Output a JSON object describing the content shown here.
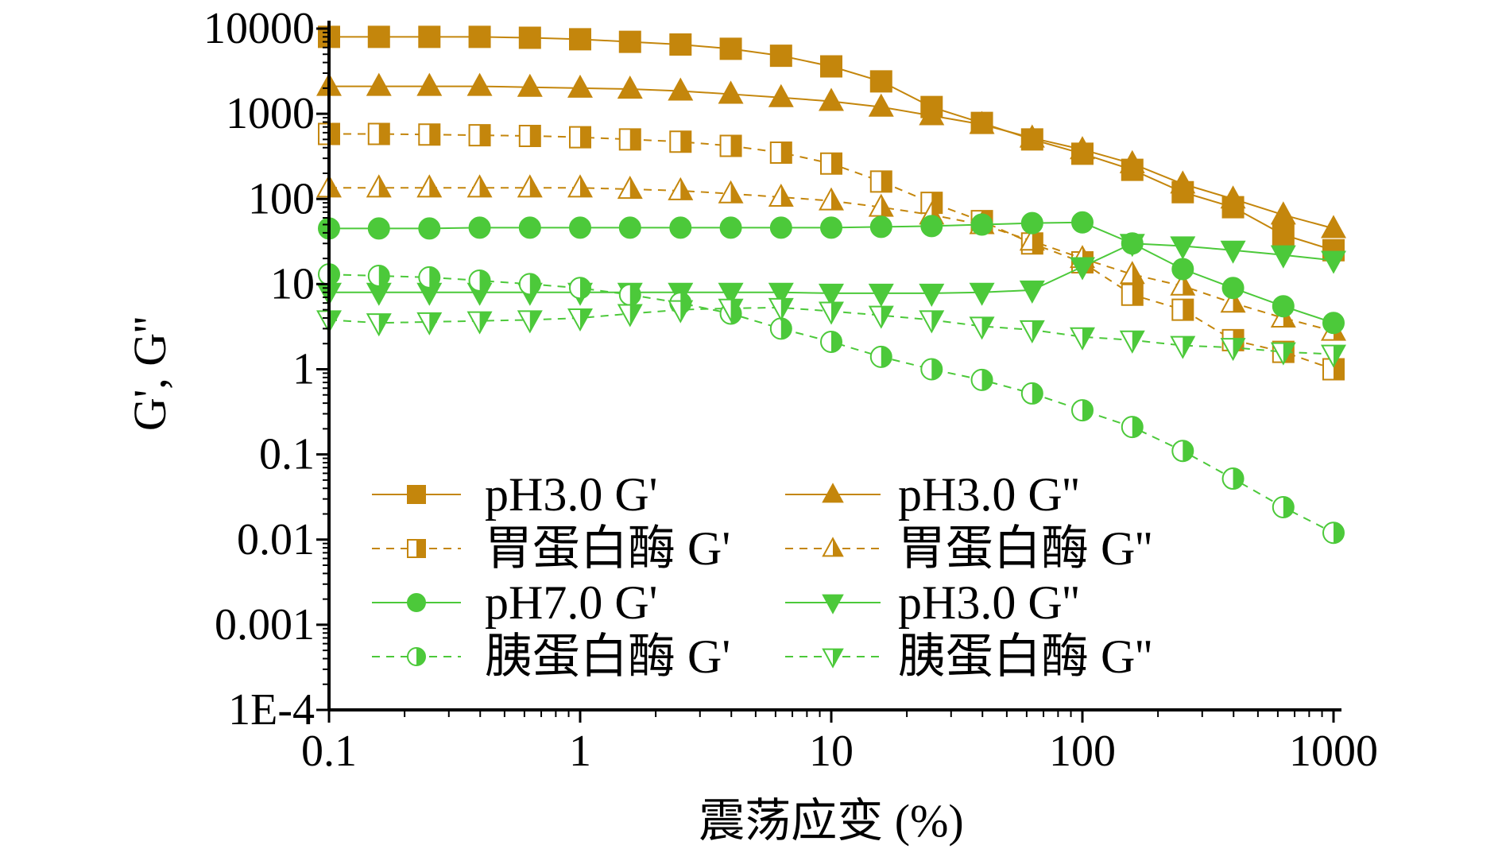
{
  "chart_data": {
    "type": "line",
    "title": "",
    "xlabel": "震荡应变 (%)",
    "ylabel": "G', G''",
    "xscale": "log",
    "yscale": "log",
    "xlim": [
      0.1,
      1000
    ],
    "ylim": [
      0.0001,
      10000
    ],
    "xticks": [
      "0.1",
      "1",
      "10",
      "100",
      "1000"
    ],
    "yticks": [
      "10000",
      "1000",
      "100",
      "10",
      "1",
      "0.1",
      "0.01",
      "0.001",
      "1E-4"
    ],
    "grid": false,
    "legend_position": "bottom-left, two columns",
    "x": [
      0.1,
      0.158,
      0.251,
      0.398,
      0.631,
      1,
      1.58,
      2.51,
      3.98,
      6.31,
      10,
      15.8,
      25.1,
      39.8,
      63.1,
      100,
      158,
      251,
      398,
      631,
      1000
    ],
    "colors": {
      "orange": "#c4860c",
      "green": "#4cc93a"
    },
    "series": [
      {
        "name": "pH3.0 G'",
        "color": "orange",
        "dash": false,
        "marker": "square",
        "fill": "full",
        "values": [
          8000,
          8000,
          8000,
          8000,
          7800,
          7500,
          7000,
          6500,
          5800,
          4800,
          3600,
          2400,
          1200,
          780,
          500,
          340,
          220,
          120,
          80,
          38,
          25
        ]
      },
      {
        "name": "pH3.0 G''",
        "color": "orange",
        "dash": false,
        "marker": "triangle-up",
        "fill": "full",
        "values": [
          2100,
          2100,
          2100,
          2100,
          2050,
          2000,
          1950,
          1850,
          1700,
          1550,
          1400,
          1200,
          950,
          750,
          520,
          380,
          260,
          150,
          100,
          65,
          45
        ]
      },
      {
        "name": "胃蛋白酶 G'",
        "color": "orange",
        "dash": true,
        "marker": "square",
        "fill": "half",
        "values": [
          580,
          580,
          570,
          560,
          550,
          530,
          500,
          470,
          420,
          350,
          260,
          160,
          90,
          55,
          30,
          18,
          7.5,
          5,
          2.2,
          1.6,
          1.0
        ]
      },
      {
        "name": "胃蛋白酶 G''",
        "color": "orange",
        "dash": true,
        "marker": "triangle-up",
        "fill": "half",
        "values": [
          135,
          135,
          135,
          135,
          135,
          135,
          130,
          125,
          115,
          105,
          95,
          80,
          65,
          50,
          32,
          20,
          13,
          9.5,
          6,
          4,
          2.8
        ]
      },
      {
        "name": "pH7.0 G'",
        "color": "green",
        "dash": false,
        "marker": "circle",
        "fill": "full",
        "values": [
          45,
          45,
          45,
          46,
          46,
          46,
          46,
          46,
          46,
          46,
          46,
          47,
          48,
          50,
          52,
          53,
          30,
          15,
          9,
          5.5,
          3.5
        ]
      },
      {
        "name": "pH3.0 G''",
        "color": "green",
        "dash": false,
        "marker": "triangle-down",
        "fill": "full",
        "values": [
          8,
          8,
          8,
          8,
          8,
          8,
          8,
          8,
          8,
          8,
          7.8,
          7.8,
          7.8,
          8,
          8.5,
          16,
          30,
          28,
          25,
          22,
          19
        ]
      },
      {
        "name": "胰蛋白酶 G'",
        "color": "green",
        "dash": true,
        "marker": "circle",
        "fill": "half",
        "values": [
          13,
          12.5,
          12,
          11,
          10,
          9,
          7.5,
          6,
          4.5,
          3,
          2.1,
          1.4,
          1.0,
          0.75,
          0.52,
          0.33,
          0.21,
          0.11,
          0.052,
          0.024,
          0.012
        ]
      },
      {
        "name": "胰蛋白酶 G''",
        "color": "green",
        "dash": true,
        "marker": "triangle-down",
        "fill": "half",
        "values": [
          3.8,
          3.5,
          3.6,
          3.7,
          3.8,
          4.0,
          4.5,
          5.0,
          5.2,
          5.3,
          4.8,
          4.3,
          3.8,
          3.2,
          2.9,
          2.4,
          2.2,
          1.9,
          1.8,
          1.6,
          1.5
        ]
      }
    ]
  }
}
